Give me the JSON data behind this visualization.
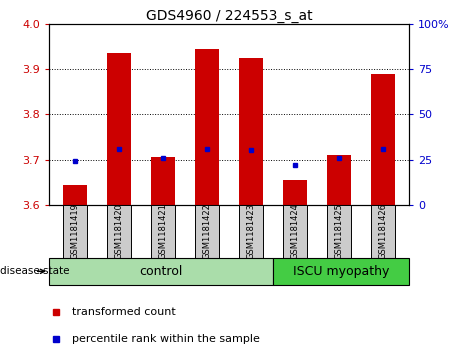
{
  "title": "GDS4960 / 224553_s_at",
  "samples": [
    "GSM1181419",
    "GSM1181420",
    "GSM1181421",
    "GSM1181422",
    "GSM1181423",
    "GSM1181424",
    "GSM1181425",
    "GSM1181426"
  ],
  "bar_values": [
    3.645,
    3.935,
    3.705,
    3.945,
    3.925,
    3.655,
    3.71,
    3.89
  ],
  "bar_bottom": 3.6,
  "percentile_values": [
    3.698,
    3.724,
    3.703,
    3.724,
    3.722,
    3.688,
    3.703,
    3.724
  ],
  "ylim": [
    3.6,
    4.0
  ],
  "yticks_left": [
    3.6,
    3.7,
    3.8,
    3.9,
    4.0
  ],
  "yticks_right_labels": [
    "0",
    "25",
    "50",
    "75",
    "100%"
  ],
  "yticks_right_vals": [
    3.6,
    3.7,
    3.8,
    3.9,
    4.0
  ],
  "bar_color": "#cc0000",
  "dot_color": "#0000cc",
  "control_color": "#aaddaa",
  "iscu_color": "#44cc44",
  "label_bg_color": "#cccccc",
  "legend_transformed": "transformed count",
  "legend_percentile": "percentile rank within the sample",
  "disease_state_label": "disease state",
  "control_label": "control",
  "iscu_label": "ISCU myopathy",
  "bar_width": 0.55,
  "n_control": 5,
  "n_iscu": 3
}
